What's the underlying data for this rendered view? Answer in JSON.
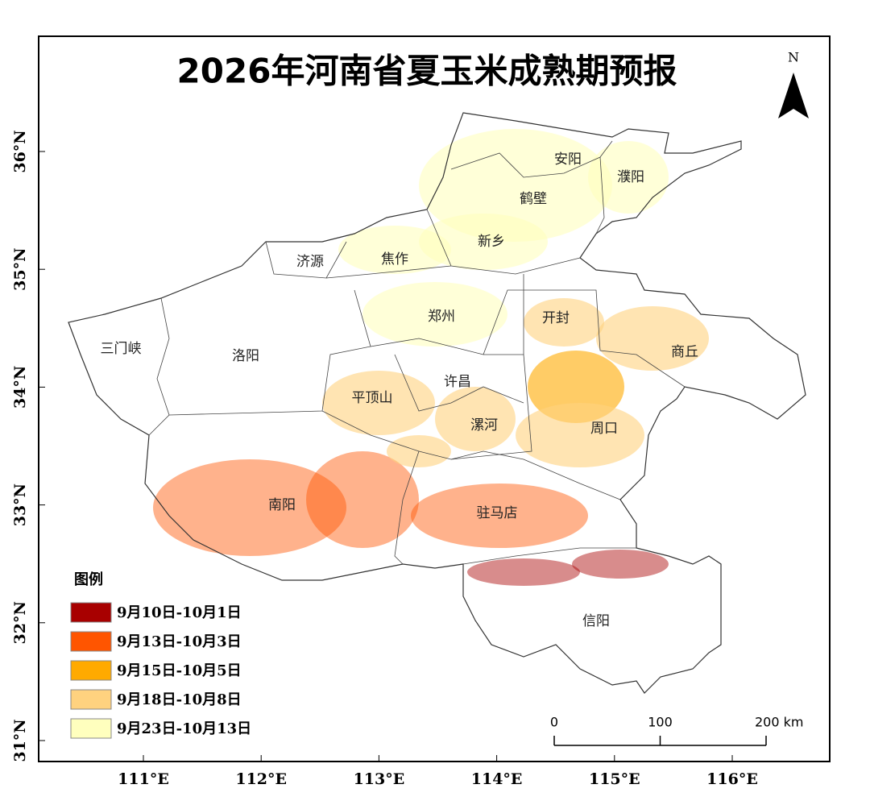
{
  "title": "2026年河南省夏玉米成熟期预报",
  "north": "N",
  "legend": {
    "title": "图例",
    "items": [
      {
        "label": "9月10日-10月1日",
        "color": "#a80000"
      },
      {
        "label": "9月13日-10月3日",
        "color": "#ff5500"
      },
      {
        "label": "9月15日-10月5日",
        "color": "#ffaa00"
      },
      {
        "label": "9月18日-10月8日",
        "color": "#ffd27f"
      },
      {
        "label": "9月23日-10月13日",
        "color": "#ffffbe"
      }
    ]
  },
  "cities": [
    "安阳",
    "濮阳",
    "鹤壁",
    "新乡",
    "济源",
    "焦作",
    "郑州",
    "开封",
    "三门峡",
    "洛阳",
    "商丘",
    "许昌",
    "平顶山",
    "漯河",
    "周口",
    "南阳",
    "驻马店",
    "信阳"
  ],
  "xticks": [
    {
      "value": 111,
      "label": "111°E"
    },
    {
      "value": 112,
      "label": "112°E"
    },
    {
      "value": 113,
      "label": "113°E"
    },
    {
      "value": 114,
      "label": "114°E"
    },
    {
      "value": 115,
      "label": "115°E"
    },
    {
      "value": 116,
      "label": "116°E"
    }
  ],
  "yticks": [
    {
      "value": 36,
      "label": "36°N"
    },
    {
      "value": 35,
      "label": "35°N"
    },
    {
      "value": 34,
      "label": "34°N"
    },
    {
      "value": 33,
      "label": "33°N"
    },
    {
      "value": 32,
      "label": "32°N"
    },
    {
      "value": 31,
      "label": "31°N"
    }
  ],
  "scale_bar": {
    "ticks": [
      0,
      100,
      {
        "value": 200,
        "label": "200 km"
      }
    ]
  }
}
